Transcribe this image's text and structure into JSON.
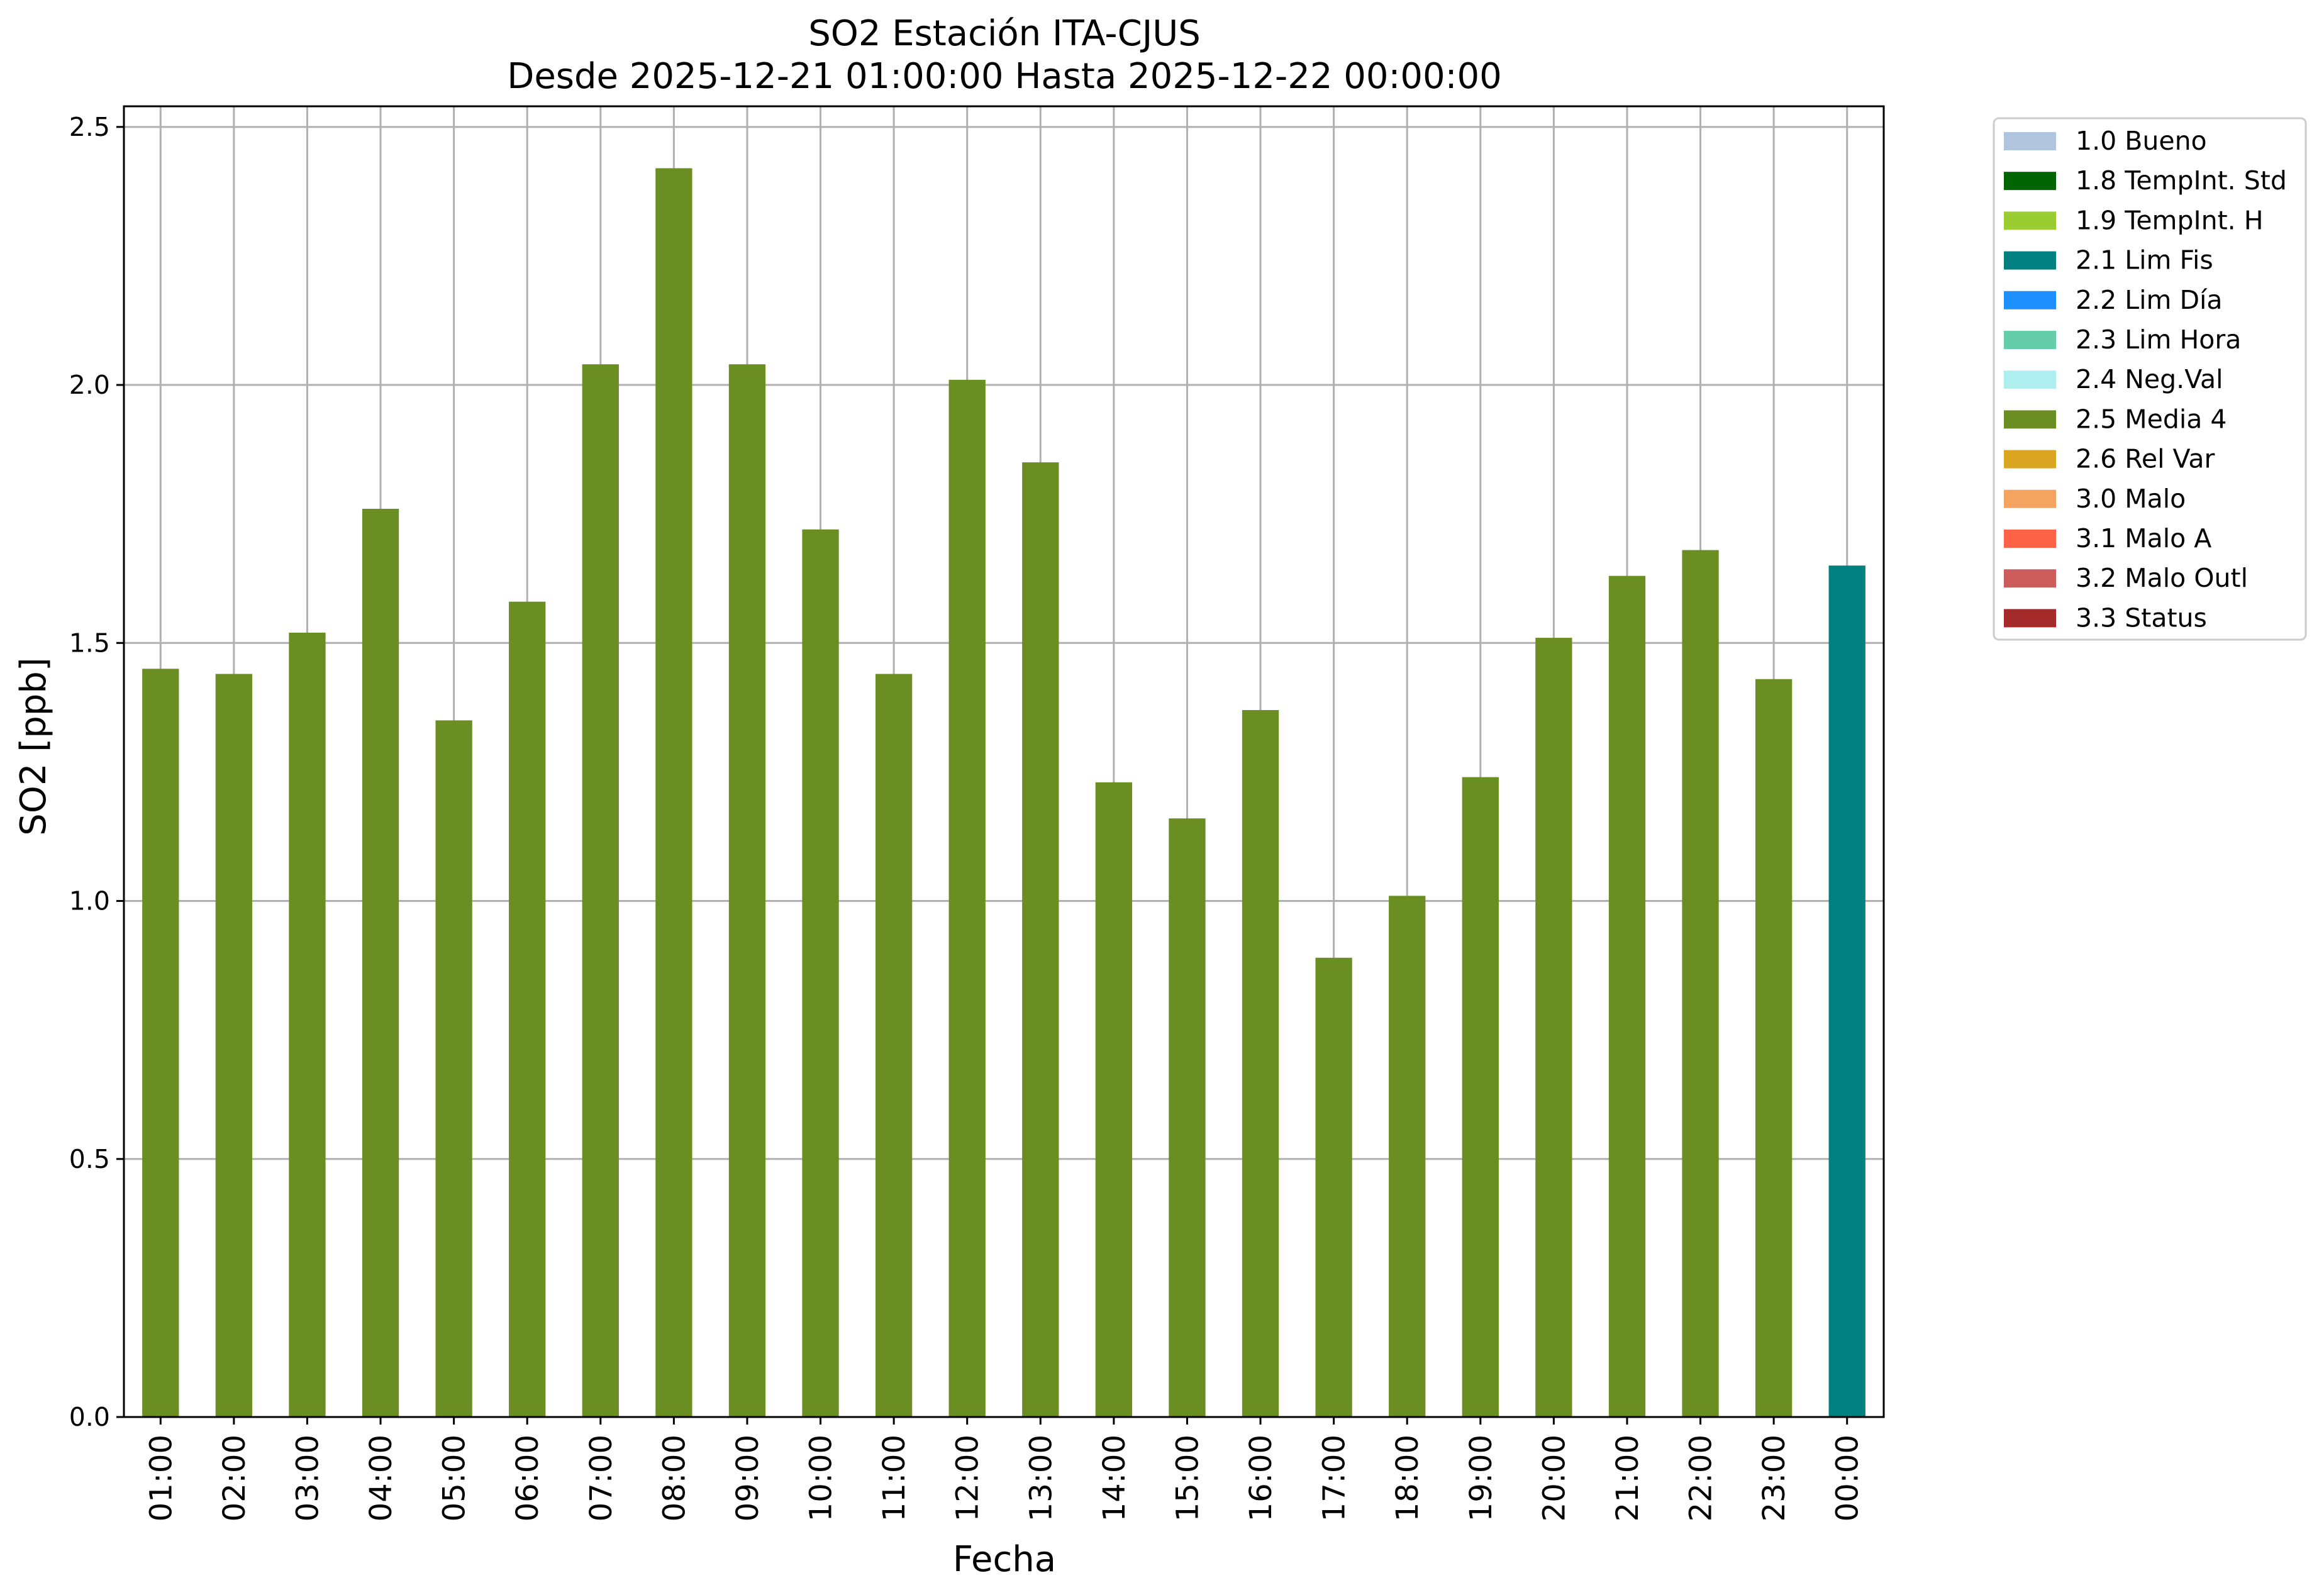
{
  "chart_data": {
    "type": "bar",
    "title": "SO2 Estación ITA-CJUS",
    "subtitle": "Desde 2025-12-21 01:00:00 Hasta 2025-12-22 00:00:00",
    "xlabel": "Fecha",
    "ylabel": "SO2 [ppb]",
    "ylim": [
      0,
      2.54
    ],
    "yticks": [
      0.0,
      0.5,
      1.0,
      1.5,
      2.0,
      2.5
    ],
    "ytick_labels": [
      "0.0",
      "0.5",
      "1.0",
      "1.5",
      "2.0",
      "2.5"
    ],
    "grid": true,
    "legend_position": "outside-top-right",
    "categories": [
      "01:00",
      "02:00",
      "03:00",
      "04:00",
      "05:00",
      "06:00",
      "07:00",
      "08:00",
      "09:00",
      "10:00",
      "11:00",
      "12:00",
      "13:00",
      "14:00",
      "15:00",
      "16:00",
      "17:00",
      "18:00",
      "19:00",
      "20:00",
      "21:00",
      "22:00",
      "23:00",
      "00:00"
    ],
    "values": [
      1.45,
      1.44,
      1.52,
      1.76,
      1.35,
      1.58,
      2.04,
      2.42,
      2.04,
      1.72,
      1.44,
      2.01,
      1.85,
      1.23,
      1.16,
      1.37,
      0.89,
      1.01,
      1.24,
      1.51,
      1.63,
      1.68,
      1.43,
      1.65
    ],
    "flags": [
      "2.5 Media 4",
      "2.5 Media 4",
      "2.5 Media 4",
      "2.5 Media 4",
      "2.5 Media 4",
      "2.5 Media 4",
      "2.5 Media 4",
      "2.5 Media 4",
      "2.5 Media 4",
      "2.5 Media 4",
      "2.5 Media 4",
      "2.5 Media 4",
      "2.5 Media 4",
      "2.5 Media 4",
      "2.5 Media 4",
      "2.5 Media 4",
      "2.5 Media 4",
      "2.5 Media 4",
      "2.5 Media 4",
      "2.5 Media 4",
      "2.5 Media 4",
      "2.5 Media 4",
      "2.5 Media 4",
      "2.1 Lim Fis"
    ],
    "legend": [
      {
        "label": "1.0 Bueno",
        "color": "#b0c4de"
      },
      {
        "label": "1.8 TempInt. Std",
        "color": "#006400"
      },
      {
        "label": "1.9 TempInt. H",
        "color": "#9acd32"
      },
      {
        "label": "2.1 Lim Fis",
        "color": "#008080"
      },
      {
        "label": "2.2 Lim Día",
        "color": "#1e90ff"
      },
      {
        "label": "2.3 Lim Hora",
        "color": "#66cdaa"
      },
      {
        "label": "2.4 Neg.Val",
        "color": "#afeeee"
      },
      {
        "label": "2.5 Media 4",
        "color": "#6b8e23"
      },
      {
        "label": "2.6 Rel Var",
        "color": "#daa520"
      },
      {
        "label": "3.0 Malo",
        "color": "#f4a460"
      },
      {
        "label": "3.1 Malo A",
        "color": "#ff6347"
      },
      {
        "label": "3.2 Malo Outl",
        "color": "#cd5c5c"
      },
      {
        "label": "3.3 Status",
        "color": "#a52a2a"
      }
    ]
  }
}
